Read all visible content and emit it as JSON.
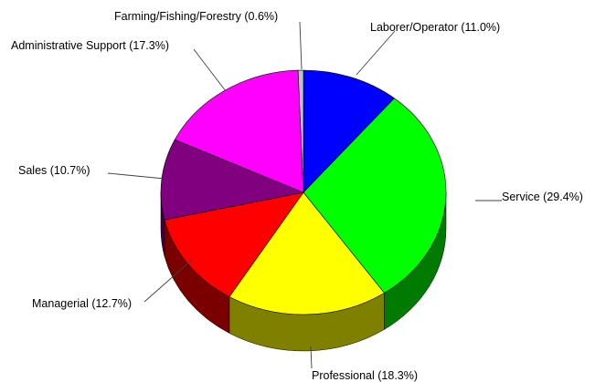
{
  "chart_data": {
    "type": "pie",
    "style": "3d",
    "start_angle": "12 o'clock",
    "direction": "clockwise",
    "title": "",
    "legend": "none",
    "slices": [
      {
        "category": "Laborer/Operator",
        "value": 11.0,
        "label": "Laborer/Operator (11.0%)",
        "color": "#0000ff",
        "side_color": "#00008b"
      },
      {
        "category": "Service",
        "value": 29.4,
        "label": "Service (29.4%)",
        "color": "#00ff00",
        "side_color": "#007a00"
      },
      {
        "category": "Professional",
        "value": 18.3,
        "label": "Professional (18.3%)",
        "color": "#ffff00",
        "side_color": "#808000"
      },
      {
        "category": "Managerial",
        "value": 12.7,
        "label": "Managerial (12.7%)",
        "color": "#ff0000",
        "side_color": "#7a0000"
      },
      {
        "category": "Sales",
        "value": 10.7,
        "label": "Sales (10.7%)",
        "color": "#800080",
        "side_color": "#3d003d"
      },
      {
        "category": "Administrative Support",
        "value": 17.3,
        "label": "Administrative Support (17.3%)",
        "color": "#ff00ff",
        "side_color": "#800080"
      },
      {
        "category": "Farming/Fishing/Forestry",
        "value": 0.6,
        "label": "Farming/Fishing/Forestry (0.6%)",
        "color": "#c0c0c0",
        "side_color": "#808080"
      }
    ]
  }
}
